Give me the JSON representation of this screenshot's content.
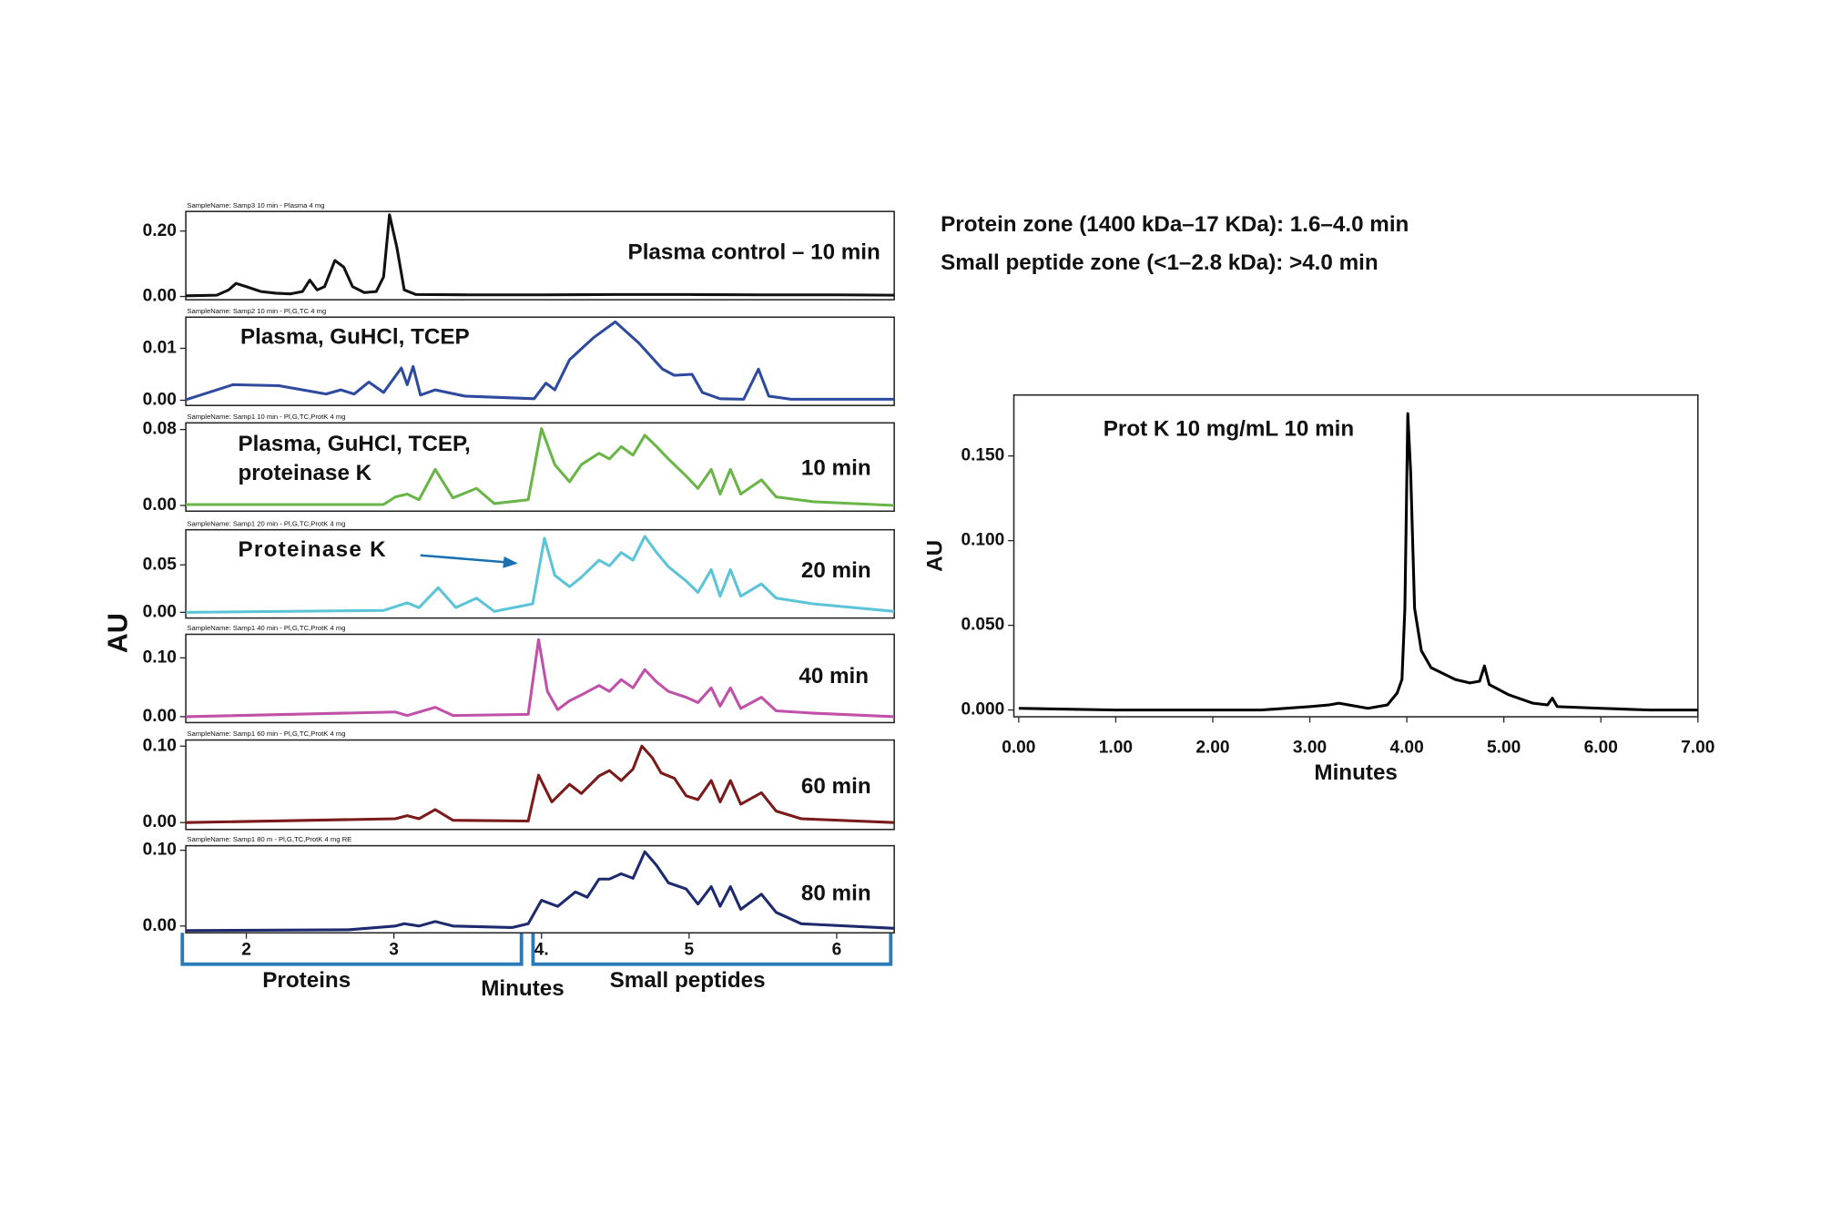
{
  "figure": {
    "y_label": "AU",
    "x_label": "Minutes",
    "zones": [
      "Proteins",
      "Small peptides"
    ],
    "notes": [
      "Protein zone (1400 kDa–17 KDa): 1.6–4.0 min",
      "Small peptide zone (<1–2.8 kDa): >4.0 min"
    ]
  },
  "chart_data": [
    {
      "type": "line",
      "sample_name": "SampleName: Samp3 10 min - Plasma 4 mg",
      "annotations": [
        "Plasma control – 10 min"
      ],
      "color": "#111111",
      "xlim": [
        1.59,
        6.39
      ],
      "ylim": [
        -0.01,
        0.26
      ],
      "yticks": [
        {
          "value": 0,
          "label": "0.00"
        },
        {
          "value": 0.2,
          "label": "0.20"
        }
      ],
      "x": [
        1.59,
        1.8,
        1.88,
        1.93,
        2.0,
        2.1,
        2.2,
        2.3,
        2.38,
        2.43,
        2.48,
        2.53,
        2.6,
        2.66,
        2.72,
        2.8,
        2.88,
        2.93,
        2.97,
        3.02,
        3.07,
        3.15,
        3.5,
        4.0,
        4.5,
        5.0,
        5.5,
        6.0,
        6.39
      ],
      "values": [
        0.002,
        0.004,
        0.02,
        0.04,
        0.03,
        0.015,
        0.01,
        0.008,
        0.015,
        0.05,
        0.02,
        0.03,
        0.11,
        0.09,
        0.03,
        0.012,
        0.015,
        0.06,
        0.25,
        0.15,
        0.02,
        0.006,
        0.005,
        0.005,
        0.006,
        0.006,
        0.005,
        0.005,
        0.004
      ]
    },
    {
      "type": "line",
      "sample_name": "SampleName: Samp2 10 min - Pl,G,TC 4 mg",
      "annotations": [
        "Plasma, GuHCl, TCEP"
      ],
      "color": "#2e4a9e",
      "xlim": [
        1.59,
        6.39
      ],
      "ylim": [
        -0.001,
        0.016
      ],
      "yticks": [
        {
          "value": 0,
          "label": "0.00"
        },
        {
          "value": 0.01,
          "label": "0.01"
        }
      ],
      "x": [
        1.59,
        1.91,
        2.22,
        2.54,
        2.64,
        2.73,
        2.83,
        2.93,
        3.05,
        3.09,
        3.13,
        3.18,
        3.28,
        3.48,
        3.95,
        4.03,
        4.09,
        4.19,
        4.35,
        4.5,
        4.66,
        4.82,
        4.9,
        5.02,
        5.09,
        5.21,
        5.37,
        5.47,
        5.54,
        5.69,
        6.39
      ],
      "values": [
        0.0001,
        0.003,
        0.0028,
        0.0012,
        0.002,
        0.0012,
        0.0035,
        0.0015,
        0.0062,
        0.003,
        0.0065,
        0.001,
        0.002,
        0.0008,
        0.0003,
        0.0033,
        0.002,
        0.0078,
        0.012,
        0.0151,
        0.011,
        0.006,
        0.0048,
        0.005,
        0.0015,
        0.0003,
        0.0002,
        0.006,
        0.0008,
        0.0002,
        0.0002
      ]
    },
    {
      "type": "line",
      "sample_name": "SampleName: Samp1 10 min - Pl,G,TC,ProtK 4 mg",
      "annotations": [
        "Plasma, GuHCl, TCEP,",
        "proteinase K",
        "10 min"
      ],
      "color": "#6ab547",
      "xlim": [
        1.59,
        6.39
      ],
      "ylim": [
        -0.006,
        0.087
      ],
      "yticks": [
        {
          "value": 0,
          "label": "0.00"
        },
        {
          "value": 0.08,
          "label": "0.08"
        }
      ],
      "x": [
        1.59,
        2.93,
        3.01,
        3.09,
        3.17,
        3.28,
        3.4,
        3.56,
        3.68,
        3.91,
        4.0,
        4.09,
        4.19,
        4.27,
        4.39,
        4.46,
        4.54,
        4.62,
        4.7,
        4.78,
        4.86,
        4.98,
        5.06,
        5.15,
        5.21,
        5.28,
        5.35,
        5.49,
        5.59,
        5.84,
        6.39
      ],
      "values": [
        0.001,
        0.001,
        0.009,
        0.012,
        0.006,
        0.038,
        0.008,
        0.018,
        0.002,
        0.006,
        0.081,
        0.043,
        0.025,
        0.043,
        0.055,
        0.049,
        0.062,
        0.053,
        0.074,
        0.062,
        0.049,
        0.031,
        0.018,
        0.038,
        0.012,
        0.038,
        0.012,
        0.027,
        0.009,
        0.004,
        0.0
      ]
    },
    {
      "type": "line",
      "sample_name": "SampleName: Samp1 20 min - Pl,G,TC,ProtK 4 mg",
      "annotations": [
        "Proteinase K",
        "20 min"
      ],
      "color": "#5bc4d6",
      "xlim": [
        1.59,
        6.39
      ],
      "ylim": [
        -0.006,
        0.087
      ],
      "yticks": [
        {
          "value": 0,
          "label": "0.00"
        },
        {
          "value": 0.05,
          "label": "0.05"
        }
      ],
      "x": [
        1.59,
        2.93,
        3.09,
        3.17,
        3.3,
        3.42,
        3.56,
        3.68,
        3.94,
        4.02,
        4.09,
        4.19,
        4.27,
        4.39,
        4.46,
        4.54,
        4.62,
        4.7,
        4.78,
        4.86,
        4.98,
        5.06,
        5.15,
        5.21,
        5.28,
        5.35,
        5.49,
        5.59,
        5.84,
        6.39
      ],
      "values": [
        0,
        0.002,
        0.01,
        0.005,
        0.026,
        0.005,
        0.015,
        0.001,
        0.009,
        0.078,
        0.039,
        0.027,
        0.037,
        0.055,
        0.049,
        0.063,
        0.055,
        0.08,
        0.063,
        0.048,
        0.033,
        0.021,
        0.045,
        0.017,
        0.045,
        0.017,
        0.03,
        0.015,
        0.009,
        0.001
      ]
    },
    {
      "type": "line",
      "sample_name": "SampleName: Samp1 40 min - Pl,G,TC,ProtK 4 mg",
      "annotations": [
        "40 min"
      ],
      "color": "#c050a8",
      "xlim": [
        1.59,
        6.39
      ],
      "ylim": [
        -0.01,
        0.14
      ],
      "yticks": [
        {
          "value": 0,
          "label": "0.00"
        },
        {
          "value": 0.1,
          "label": "0.10"
        }
      ],
      "x": [
        1.59,
        3.01,
        3.09,
        3.28,
        3.4,
        3.91,
        3.98,
        4.04,
        4.11,
        4.19,
        4.27,
        4.39,
        4.46,
        4.54,
        4.62,
        4.7,
        4.78,
        4.86,
        4.98,
        5.06,
        5.15,
        5.21,
        5.28,
        5.35,
        5.49,
        5.59,
        5.84,
        6.39
      ],
      "values": [
        0,
        0.008,
        0.002,
        0.016,
        0.002,
        0.004,
        0.131,
        0.043,
        0.012,
        0.027,
        0.037,
        0.053,
        0.043,
        0.063,
        0.049,
        0.08,
        0.059,
        0.043,
        0.033,
        0.024,
        0.049,
        0.018,
        0.049,
        0.014,
        0.033,
        0.01,
        0.006,
        0
      ]
    },
    {
      "type": "line",
      "sample_name": "SampleName: Samp1 60 min - Pl,G,TC,ProtK 4 mg",
      "annotations": [
        "60 min"
      ],
      "color": "#7a1a1a",
      "xlim": [
        1.59,
        6.39
      ],
      "ylim": [
        -0.009,
        0.108
      ],
      "yticks": [
        {
          "value": 0,
          "label": "0.00"
        },
        {
          "value": 0.1,
          "label": "0.10"
        }
      ],
      "x": [
        1.59,
        3.01,
        3.09,
        3.17,
        3.28,
        3.4,
        3.91,
        3.98,
        4.07,
        4.19,
        4.27,
        4.39,
        4.46,
        4.54,
        4.62,
        4.68,
        4.75,
        4.81,
        4.9,
        4.98,
        5.06,
        5.15,
        5.21,
        5.28,
        5.35,
        5.49,
        5.59,
        5.76,
        6.39
      ],
      "values": [
        0,
        0.005,
        0.009,
        0.005,
        0.017,
        0.003,
        0.002,
        0.062,
        0.027,
        0.05,
        0.038,
        0.061,
        0.068,
        0.055,
        0.07,
        0.1,
        0.085,
        0.065,
        0.058,
        0.035,
        0.03,
        0.055,
        0.027,
        0.055,
        0.024,
        0.039,
        0.015,
        0.005,
        0
      ]
    },
    {
      "type": "line",
      "sample_name": "SampleName: Samp1 80 m - Pl,G,TC,ProtK 4 mg RE",
      "annotations": [
        "80 min"
      ],
      "color": "#1e2a6e",
      "xlim": [
        1.59,
        6.39
      ],
      "ylim": [
        -0.009,
        0.106
      ],
      "yticks": [
        {
          "value": 0,
          "label": "0.00"
        },
        {
          "value": 0.1,
          "label": "0.10"
        }
      ],
      "xticks": [
        2,
        3,
        {
          "value": 4,
          "label": "4."
        },
        5,
        6
      ],
      "x": [
        1.59,
        2.69,
        3.01,
        3.07,
        3.17,
        3.28,
        3.4,
        3.8,
        3.91,
        4.0,
        4.11,
        4.23,
        4.31,
        4.39,
        4.46,
        4.54,
        4.62,
        4.7,
        4.78,
        4.86,
        4.98,
        5.06,
        5.15,
        5.21,
        5.28,
        5.35,
        5.49,
        5.59,
        5.76,
        6.39
      ],
      "values": [
        -0.006,
        -0.005,
        0,
        0.003,
        0,
        0.006,
        0,
        -0.002,
        0.003,
        0.034,
        0.026,
        0.045,
        0.038,
        0.062,
        0.062,
        0.069,
        0.063,
        0.098,
        0.08,
        0.057,
        0.049,
        0.029,
        0.052,
        0.026,
        0.052,
        0.022,
        0.042,
        0.018,
        0.003,
        -0.003
      ]
    },
    {
      "type": "line",
      "annotations": [
        "Prot K 10 mg/mL 10 min"
      ],
      "xlabel": "Minutes",
      "ylabel": "AU",
      "color": "#000000",
      "xlim": [
        -0.05,
        7.0
      ],
      "ylim": [
        -0.004,
        0.186
      ],
      "xticks": [
        {
          "value": 0,
          "label": "0.00"
        },
        {
          "value": 1,
          "label": "1.00"
        },
        {
          "value": 2,
          "label": "2.00"
        },
        {
          "value": 3,
          "label": "3.00"
        },
        {
          "value": 4,
          "label": "4.00"
        },
        {
          "value": 5,
          "label": "5.00"
        },
        {
          "value": 6,
          "label": "6.00"
        },
        {
          "value": 7,
          "label": "7.00"
        }
      ],
      "yticks": [
        {
          "value": 0,
          "label": "0.000"
        },
        {
          "value": 0.05,
          "label": "0.050"
        },
        {
          "value": 0.1,
          "label": "0.100"
        },
        {
          "value": 0.15,
          "label": "0.150"
        }
      ],
      "x": [
        0,
        1,
        2,
        2.5,
        3.0,
        3.2,
        3.3,
        3.4,
        3.6,
        3.8,
        3.9,
        3.95,
        3.98,
        4.01,
        4.04,
        4.08,
        4.15,
        4.25,
        4.5,
        4.65,
        4.75,
        4.8,
        4.85,
        4.95,
        5.05,
        5.3,
        5.45,
        5.5,
        5.55,
        6.0,
        6.5,
        7.0
      ],
      "values": [
        0.001,
        0,
        0,
        0,
        0.002,
        0.003,
        0.004,
        0.003,
        0.001,
        0.003,
        0.01,
        0.018,
        0.06,
        0.175,
        0.14,
        0.06,
        0.035,
        0.025,
        0.018,
        0.016,
        0.017,
        0.026,
        0.015,
        0.012,
        0.009,
        0.004,
        0.003,
        0.007,
        0.002,
        0.001,
        0,
        0
      ]
    }
  ]
}
